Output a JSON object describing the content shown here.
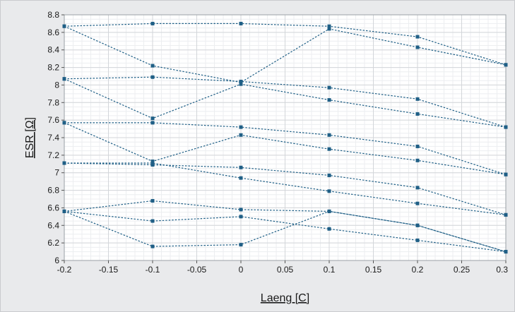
{
  "chart_data": {
    "type": "line",
    "title": "",
    "xlabel": "Laeng [C]",
    "ylabel": "ESR [Ω]",
    "xlim": [
      -0.2,
      0.3
    ],
    "ylim": [
      6,
      8.8
    ],
    "x_ticks": [
      -0.2,
      -0.15,
      -0.1,
      -0.05,
      0,
      0.05,
      0.1,
      0.15,
      0.2,
      0.25,
      0.3
    ],
    "x_tick_labels": [
      "-0.2",
      "-0.15",
      "-0.1",
      "-0.05",
      "0",
      "0.05",
      "0.1",
      "0.15",
      "0.2",
      "0.25",
      "0.3"
    ],
    "y_ticks": [
      6,
      6.2,
      6.4,
      6.6,
      6.8,
      7,
      7.2,
      7.4,
      7.6,
      7.8,
      8,
      8.2,
      8.4,
      8.6,
      8.8
    ],
    "y_tick_labels": [
      "6",
      "6.2",
      "6.4",
      "6.6",
      "6.8",
      "7",
      "7.2",
      "7.4",
      "7.6",
      "7.8",
      "8",
      "8.2",
      "8.4",
      "8.6",
      "8.8"
    ],
    "grid": true,
    "minor_grid": true,
    "legend": "none",
    "colors": {
      "series": "#1f5f86",
      "grid_major": "#d3d6da",
      "grid_minor": "#eceef0",
      "plot_bg": "#ffffff",
      "panel_bg": "#e9eaec"
    },
    "x": [
      -0.2,
      -0.1,
      0,
      0.1,
      0.2,
      0.3
    ],
    "series": [
      {
        "values": [
          8.67,
          8.7,
          8.7,
          8.67,
          8.55,
          8.23
        ]
      },
      {
        "values": [
          8.67,
          8.22,
          8.03,
          8.64,
          8.43,
          8.23
        ]
      },
      {
        "values": [
          8.07,
          8.09,
          8.04,
          7.97,
          7.84,
          7.52
        ]
      },
      {
        "values": [
          8.07,
          7.62,
          8.01,
          7.83,
          7.67,
          7.52
        ]
      },
      {
        "values": [
          7.57,
          7.57,
          7.52,
          7.43,
          7.3,
          6.98
        ]
      },
      {
        "values": [
          7.57,
          7.13,
          7.43,
          7.27,
          7.14,
          6.98
        ]
      },
      {
        "values": [
          7.11,
          7.09,
          7.06,
          6.97,
          6.83,
          6.52
        ]
      },
      {
        "values": [
          7.11,
          7.11,
          6.94,
          6.79,
          6.65,
          6.52
        ]
      },
      {
        "values": [
          6.56,
          6.68,
          6.58,
          6.56,
          6.4,
          6.1
        ]
      },
      {
        "values": [
          6.56,
          6.45,
          6.5,
          6.36,
          6.23,
          6.1
        ]
      },
      {
        "values": [
          6.56,
          6.16,
          6.18,
          6.56,
          6.4,
          6.1
        ]
      }
    ]
  }
}
